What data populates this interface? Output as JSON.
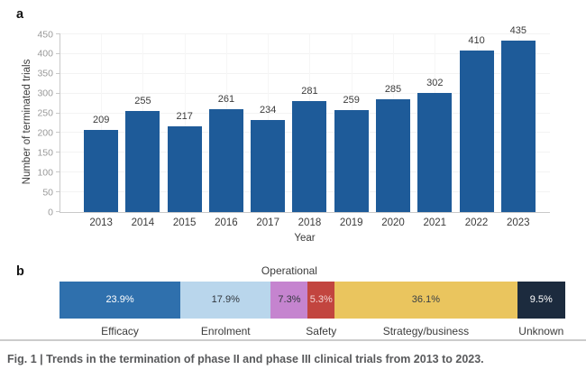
{
  "figure": {
    "panel_a_label": "a",
    "panel_b_label": "b",
    "caption": "Fig. 1 | Trends in the termination of phase II and phase III clinical trials from 2013 to 2023."
  },
  "chart_data": [
    {
      "type": "bar",
      "panel": "a",
      "categories": [
        "2013",
        "2014",
        "2015",
        "2016",
        "2017",
        "2018",
        "2019",
        "2020",
        "2021",
        "2022",
        "2023"
      ],
      "values": [
        209,
        255,
        217,
        261,
        234,
        281,
        259,
        285,
        302,
        410,
        435
      ],
      "xlabel": "Year",
      "ylabel": "Number of terminated trials",
      "ylim": [
        0,
        450
      ],
      "ytick_step": 50,
      "bar_color": "#1E5B99",
      "grid": true,
      "legend": "none"
    },
    {
      "type": "stacked-bar",
      "panel": "b",
      "orientation": "horizontal",
      "segments": [
        {
          "label": "Efficacy",
          "pct": 23.9,
          "value_label": "23.9%",
          "color": "#2F70AD",
          "text_color": "#FFFFFF",
          "label_position": "below"
        },
        {
          "label": "Enrolment",
          "pct": 17.9,
          "value_label": "17.9%",
          "color": "#B9D6EC",
          "text_color": "#31373E",
          "label_position": "below"
        },
        {
          "label": "Operational",
          "pct": 7.3,
          "value_label": "7.3%",
          "color": "#C584CF",
          "text_color": "#31373E",
          "label_position": "above"
        },
        {
          "label": "Safety",
          "pct": 5.3,
          "value_label": "5.3%",
          "color": "#C2453F",
          "text_color": "#F3D3D1",
          "label_position": "below"
        },
        {
          "label": "Strategy/business",
          "pct": 36.1,
          "value_label": "36.1%",
          "color": "#EAC55E",
          "text_color": "#3A4046",
          "label_position": "below"
        },
        {
          "label": "Unknown",
          "pct": 9.5,
          "value_label": "9.5%",
          "color": "#1C2B3E",
          "text_color": "#FFFFFF",
          "label_position": "below"
        }
      ]
    }
  ]
}
